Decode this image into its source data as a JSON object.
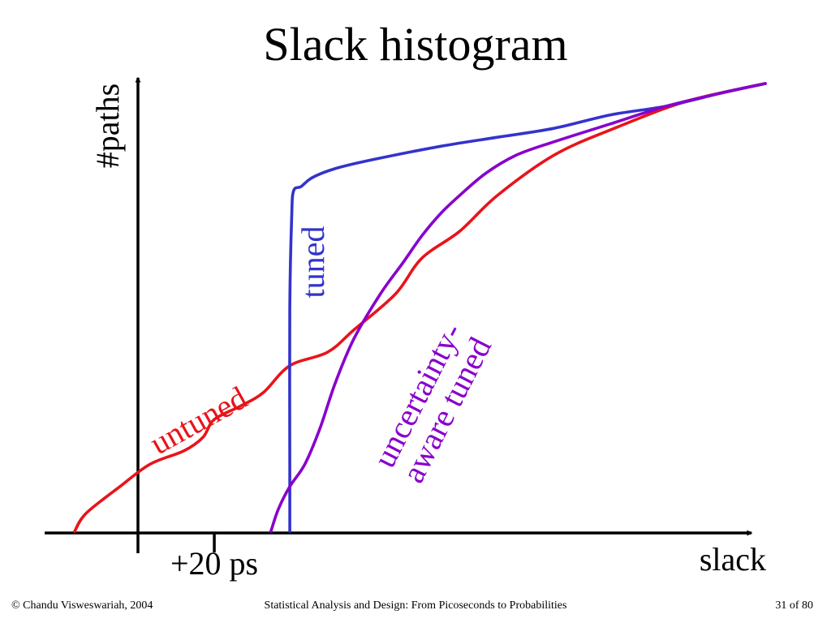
{
  "slide": {
    "title": "Slack histogram",
    "footer_left": "© Chandu Visweswariah, 2004",
    "footer_center": "Statistical Analysis and Design: From Picoseconds to Probabilities",
    "footer_right": "31 of 80"
  },
  "chart_data": {
    "type": "line",
    "title": "Slack histogram",
    "xlabel": "slack",
    "ylabel": "#paths",
    "x_ticks": [
      {
        "value": 20,
        "label": "+20 ps"
      }
    ],
    "xlim": [
      -17,
      166
    ],
    "ylim": [
      0,
      100
    ],
    "grid": false,
    "legend": "none (series labeled inline)",
    "series": [
      {
        "name": "untuned",
        "color": "#e8141a",
        "x": [
          -17,
          -14,
          -5,
          3,
          12,
          17,
          20,
          27,
          33,
          40,
          50,
          57,
          68,
          75,
          85,
          95,
          110,
          126,
          145,
          166
        ],
        "y": [
          0,
          4,
          10,
          15,
          18,
          21,
          25,
          28,
          31,
          37,
          40,
          45,
          53,
          61,
          67,
          75,
          84,
          90,
          96,
          100
        ]
      },
      {
        "name": "tuned",
        "color": "#3333cc",
        "x": [
          40,
          40,
          40,
          40.5,
          41,
          43,
          46,
          52,
          62,
          80,
          95,
          110,
          125,
          140,
          155,
          166
        ],
        "y": [
          0,
          15,
          50,
          70,
          76,
          77,
          79,
          81,
          83,
          86,
          88,
          90,
          93,
          95,
          98,
          100
        ]
      },
      {
        "name": "uncertainty-aware tuned",
        "color": "#8800cc",
        "x": [
          35,
          37,
          40,
          44,
          48,
          52,
          57,
          64,
          70,
          75,
          80,
          85,
          92,
          100,
          110,
          125,
          140,
          155,
          166
        ],
        "y": [
          0,
          5,
          10,
          15,
          23,
          33,
          43,
          53,
          60,
          66,
          71,
          75,
          80,
          84,
          87,
          91,
          95,
          98,
          100
        ]
      }
    ],
    "annotations": [
      {
        "series": "untuned",
        "text": "untuned"
      },
      {
        "series": "tuned",
        "text": "tuned"
      },
      {
        "series": "uncertainty-aware tuned",
        "lines": [
          "uncertainty-",
          "aware tuned"
        ]
      }
    ]
  }
}
